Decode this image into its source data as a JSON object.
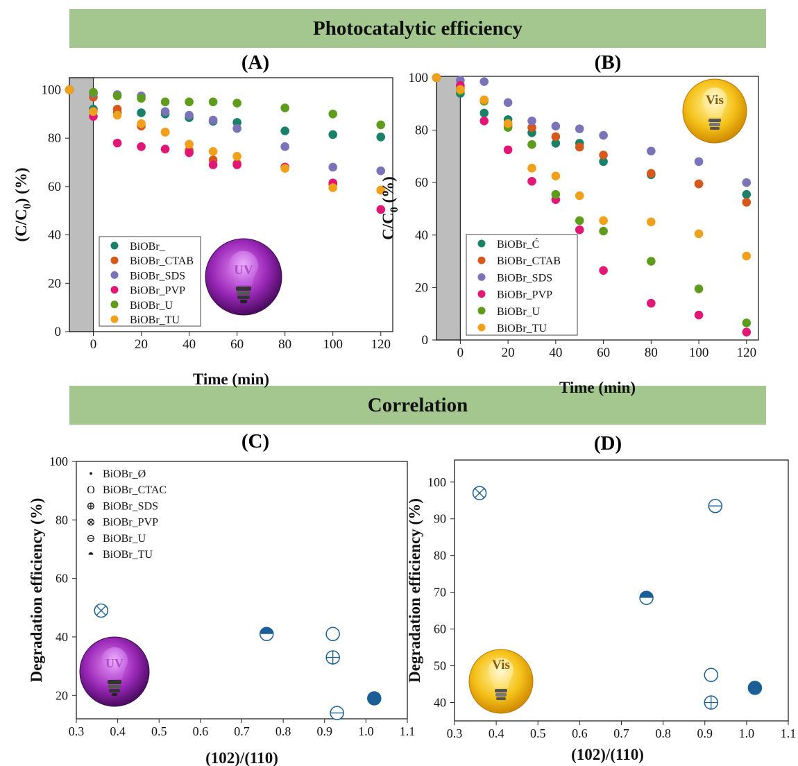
{
  "headers": {
    "top": "Photocatalytic efficiency",
    "middle": "Correlation"
  },
  "panel_labels": {
    "A": "(A)",
    "B": "(B)",
    "C": "(C)",
    "D": "(D)"
  },
  "badges": {
    "uv": "UV",
    "vis": "Vis"
  },
  "colors": {
    "banner": "#a3c78f",
    "dark_shading": "#bdbdbd",
    "teal": "#1a8068",
    "orange": "#d4591a",
    "lavender": "#7a73b8",
    "magenta": "#e01775",
    "green": "#5f9c1d",
    "amber": "#f0a01a",
    "marker_blue": "#1b5e96"
  },
  "chart_data": [
    {
      "id": "A",
      "type": "scatter",
      "xlabel": "Time (min)",
      "ylabel": "(C/C0) (%)",
      "xlim": [
        -10,
        125
      ],
      "ylim": [
        0,
        105
      ],
      "xticks": [
        0,
        20,
        40,
        60,
        80,
        100,
        120
      ],
      "yticks": [
        0,
        20,
        40,
        60,
        80,
        100
      ],
      "shaded_region": [
        -10,
        0
      ],
      "legend_position": "bottom-left",
      "icon": "uv-bulb",
      "x": [
        -10,
        0,
        10,
        20,
        30,
        40,
        50,
        60,
        80,
        100,
        120
      ],
      "series": [
        {
          "name": "BiOBr_",
          "color": "teal",
          "values": [
            100,
            92,
            90.5,
            90.5,
            90,
            88.5,
            87,
            86.5,
            83,
            81.5,
            80.5
          ]
        },
        {
          "name": "BiOBr_CTAB",
          "color": "orange",
          "values": [
            100,
            97,
            92,
            85,
            82.5,
            75,
            71,
            69.5,
            68,
            61,
            58.5
          ]
        },
        {
          "name": "BiOBr_SDS",
          "color": "lavender",
          "values": [
            100,
            98.5,
            98,
            97.5,
            91,
            89.5,
            87.5,
            84,
            76.5,
            68,
            66.5
          ]
        },
        {
          "name": "BiOBr_PVP",
          "color": "magenta",
          "values": [
            100,
            89,
            78,
            76.5,
            75.5,
            74,
            69,
            69,
            68,
            61.5,
            50.5
          ]
        },
        {
          "name": "BiOBr_U",
          "color": "green",
          "values": [
            100,
            99,
            97.5,
            96.5,
            95,
            95,
            95,
            94.5,
            92.5,
            90,
            85.5
          ]
        },
        {
          "name": "BiOBr_TU",
          "color": "amber",
          "values": [
            100,
            91,
            89.5,
            86,
            82.5,
            77.5,
            74.5,
            72.5,
            67.5,
            59.5,
            58.5
          ]
        }
      ]
    },
    {
      "id": "B",
      "type": "scatter",
      "xlabel": "Time (min)",
      "ylabel": "C/C0 (%)",
      "xlim": [
        -10,
        125
      ],
      "ylim": [
        0,
        100.5
      ],
      "xticks": [
        0,
        20,
        40,
        60,
        80,
        100,
        120
      ],
      "yticks": [
        0,
        20,
        40,
        60,
        80,
        100
      ],
      "shaded_region": [
        -10,
        0
      ],
      "legend_position": "bottom-left",
      "icon": "vis-bulb",
      "x": [
        -10,
        0,
        10,
        20,
        30,
        40,
        50,
        60,
        80,
        100,
        120
      ],
      "series": [
        {
          "name": "BiOBr_Ć",
          "color": "teal",
          "values": [
            100,
            94,
            86.5,
            84,
            79,
            75,
            75,
            68,
            63,
            59.5,
            55.5
          ]
        },
        {
          "name": "BiOBr_CTAB",
          "color": "orange",
          "values": [
            100,
            96,
            91.5,
            82,
            81,
            77.5,
            73.5,
            70.5,
            63.5,
            59.5,
            52.5
          ]
        },
        {
          "name": "BiOBr_SDS",
          "color": "lavender",
          "values": [
            100,
            99,
            98.5,
            90.5,
            83.5,
            81.5,
            80.5,
            78,
            72,
            68,
            60
          ]
        },
        {
          "name": "BiOBr_PVP",
          "color": "magenta",
          "values": [
            100,
            97,
            83.5,
            72.5,
            60.5,
            53.5,
            42,
            26.5,
            14,
            9.5,
            3
          ]
        },
        {
          "name": "BiOBr_U",
          "color": "green",
          "values": [
            100,
            95,
            91,
            81,
            74.5,
            55.5,
            45.5,
            41.5,
            30,
            19.5,
            6.5
          ]
        },
        {
          "name": "BiOBr_TU",
          "color": "amber",
          "values": [
            100,
            95.5,
            91.5,
            82.5,
            65.5,
            62.5,
            55,
            45.5,
            45,
            40.5,
            32
          ]
        }
      ]
    },
    {
      "id": "C",
      "type": "scatter",
      "xlabel": "(102)/(110)",
      "ylabel": "Degradation efficiency (%)",
      "xlim": [
        0.3,
        1.1
      ],
      "ylim": [
        12,
        100
      ],
      "xticks": [
        0.3,
        0.4,
        0.5,
        0.6,
        0.7,
        0.8,
        0.9,
        1.0,
        1.1
      ],
      "yticks": [
        20,
        40,
        60,
        80,
        100
      ],
      "legend_position": "top-left",
      "icon": "uv-bulb",
      "points": [
        {
          "name": "BiOBr_Ø",
          "marker": "filled",
          "x": 1.02,
          "y": 19
        },
        {
          "name": "BiOBr_CTAC",
          "marker": "open",
          "x": 0.92,
          "y": 41
        },
        {
          "name": "BiOBr_SDS",
          "marker": "plus",
          "x": 0.92,
          "y": 33
        },
        {
          "name": "BiOBr_PVP",
          "marker": "cross",
          "x": 0.36,
          "y": 49
        },
        {
          "name": "BiOBr_U",
          "marker": "minus",
          "x": 0.93,
          "y": 14
        },
        {
          "name": "BiOBr_TU",
          "marker": "half",
          "x": 0.76,
          "y": 41
        }
      ],
      "legend_markers": [
        "•",
        "O",
        "⊕",
        "⊗",
        "⊖",
        "◓"
      ]
    },
    {
      "id": "D",
      "type": "scatter",
      "xlabel": "(102)/(110)",
      "ylabel": "Degradation efficiency (%)",
      "xlim": [
        0.3,
        1.1
      ],
      "ylim": [
        35,
        106
      ],
      "xticks": [
        0.3,
        0.4,
        0.5,
        0.6,
        0.7,
        0.8,
        0.9,
        1.0,
        1.1
      ],
      "yticks": [
        40,
        50,
        60,
        70,
        80,
        90,
        100
      ],
      "icon": "vis-bulb",
      "points": [
        {
          "marker": "cross",
          "x": 0.36,
          "y": 97
        },
        {
          "marker": "minus",
          "x": 0.925,
          "y": 93.5
        },
        {
          "marker": "half",
          "x": 0.76,
          "y": 68.5
        },
        {
          "marker": "open",
          "x": 0.915,
          "y": 47.5
        },
        {
          "marker": "plus",
          "x": 0.915,
          "y": 40
        },
        {
          "marker": "filled",
          "x": 1.02,
          "y": 44
        }
      ]
    }
  ]
}
